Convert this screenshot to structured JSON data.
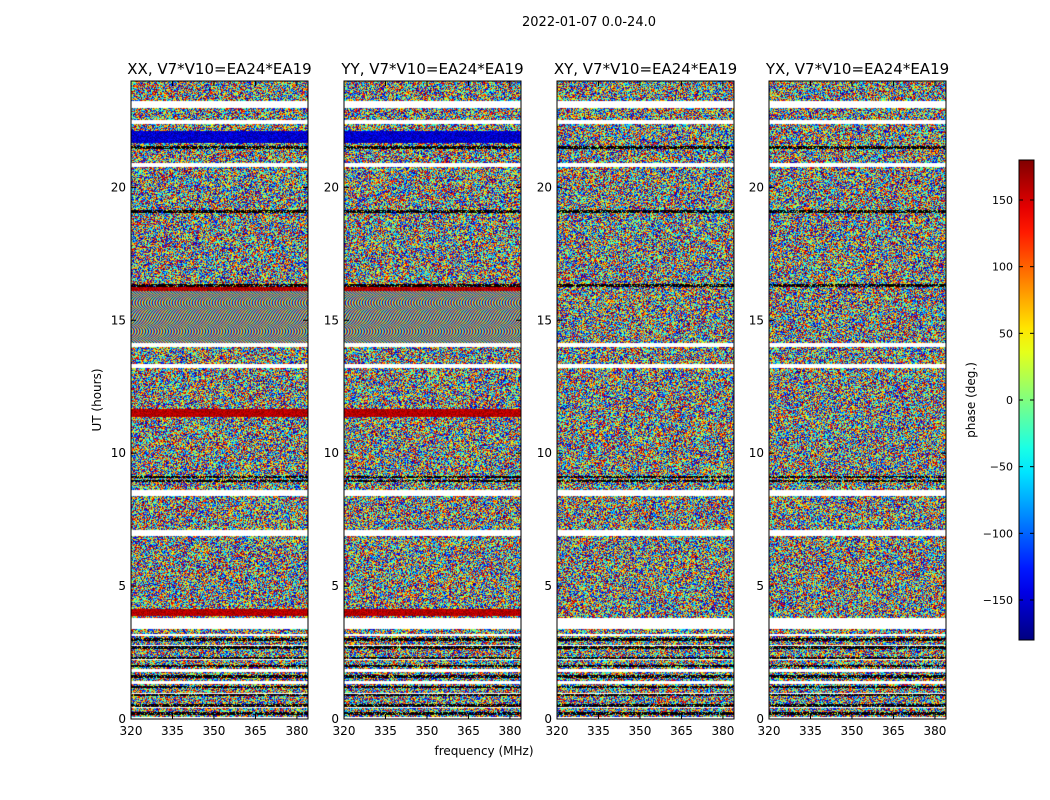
{
  "chart_data": {
    "type": "heatmap",
    "suptitle": "2022-01-07 0.0-24.0",
    "xlabel": "frequency (MHz)",
    "ylabel": "UT (hours)",
    "xlim": [
      320,
      384
    ],
    "ylim": [
      0,
      24
    ],
    "x_ticks": [
      320,
      335,
      350,
      365,
      380
    ],
    "y_ticks": [
      0,
      5,
      10,
      15,
      20
    ],
    "panels": [
      {
        "title": "XX, V7*V10=EA24*EA19"
      },
      {
        "title": "YY, V7*V10=EA24*EA19"
      },
      {
        "title": "XY, V7*V10=EA24*EA19"
      },
      {
        "title": "YX, V7*V10=EA24*EA19"
      }
    ],
    "colorbar": {
      "label": "phase (deg.)",
      "range": [
        -180,
        180
      ],
      "ticks": [
        150,
        100,
        50,
        0,
        -50,
        -100,
        -150
      ],
      "tick_labels": [
        "150",
        "100",
        "50",
        "0",
        "−50",
        "−100",
        "−150"
      ],
      "colormap": "jet"
    },
    "blank_bands_hours": [
      [
        3.4,
        3.8
      ],
      [
        6.9,
        7.1
      ],
      [
        8.4,
        8.6
      ],
      [
        13.2,
        13.35
      ],
      [
        14.0,
        14.15
      ],
      [
        20.75,
        20.9
      ],
      [
        22.4,
        22.55
      ],
      [
        23.0,
        23.25
      ]
    ],
    "flagged_lines_hours": [
      0.2,
      0.5,
      0.9,
      1.2,
      1.6,
      2.0,
      2.3,
      2.7,
      3.0,
      8.95,
      9.1,
      16.3,
      19.1,
      21.5
    ],
    "fringe_region_hours": [
      14.0,
      16.1
    ]
  }
}
